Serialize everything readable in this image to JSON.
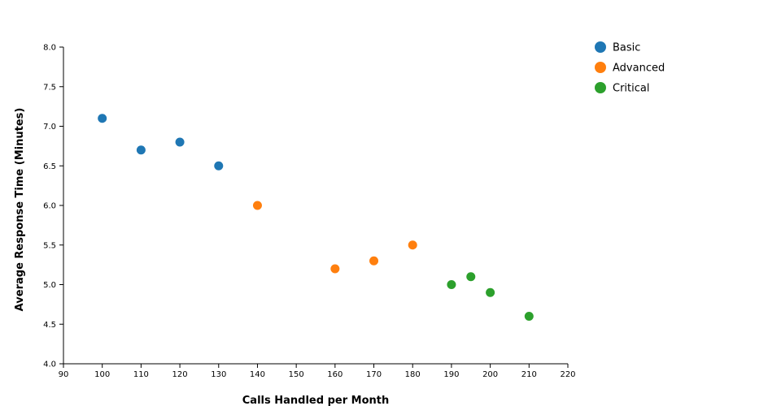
{
  "chart_data": {
    "type": "scatter",
    "xlabel": "Calls Handled per Month",
    "ylabel": "Average Response Time (Minutes)",
    "xlim": [
      90,
      220
    ],
    "ylim": [
      4.0,
      8.0
    ],
    "x_ticks": [
      "90",
      "100",
      "110",
      "120",
      "130",
      "140",
      "150",
      "160",
      "170",
      "180",
      "190",
      "200",
      "210",
      "220"
    ],
    "y_ticks": [
      "4.0",
      "4.5",
      "5.0",
      "5.5",
      "6.0",
      "6.5",
      "7.0",
      "7.5",
      "8.0"
    ],
    "grid": false,
    "legend_position": "top-right",
    "series": [
      {
        "name": "Basic",
        "color": "#1f77b4",
        "points": [
          [
            100,
            7.1
          ],
          [
            110,
            6.7
          ],
          [
            120,
            6.8
          ],
          [
            130,
            6.5
          ]
        ]
      },
      {
        "name": "Advanced",
        "color": "#ff7f0e",
        "points": [
          [
            140,
            6.0
          ],
          [
            160,
            5.2
          ],
          [
            170,
            5.3
          ],
          [
            180,
            5.5
          ]
        ]
      },
      {
        "name": "Critical",
        "color": "#2ca02c",
        "points": [
          [
            190,
            5.0
          ],
          [
            195,
            5.1
          ],
          [
            200,
            4.9
          ],
          [
            210,
            4.6
          ]
        ]
      }
    ]
  }
}
